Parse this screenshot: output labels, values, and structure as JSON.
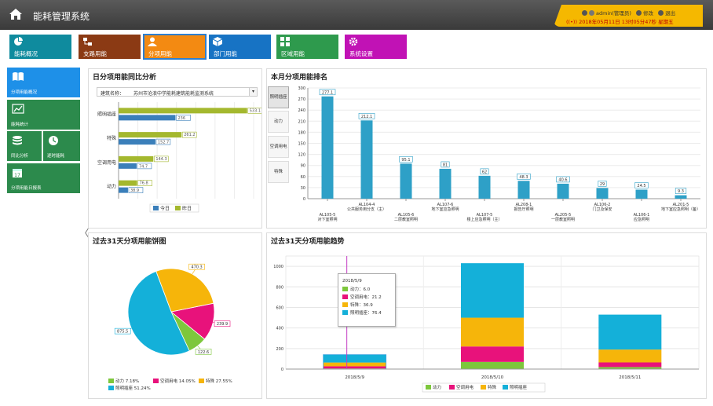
{
  "app": {
    "title": "能耗管理系统",
    "user_line": "admin(管理员)  修改  退出",
    "user_name": "admin(管理员)",
    "modify": "修改",
    "logout": "退出",
    "datetime": "2018年05月11日 13时05分47秒 星期五"
  },
  "modules": [
    {
      "label": "能耗概况",
      "color": "#0f8b9e",
      "icon": "pie-icon"
    },
    {
      "label": "支路用能",
      "color": "#8b3a14",
      "icon": "branch-icon"
    },
    {
      "label": "分项用能",
      "color": "#f38a12",
      "icon": "user-icon",
      "active": true
    },
    {
      "label": "部门用能",
      "color": "#1773c4",
      "icon": "cube-icon"
    },
    {
      "label": "区域用能",
      "color": "#2e9a4d",
      "icon": "grid-icon"
    },
    {
      "label": "系统设置",
      "color": "#c112b5",
      "icon": "gear-icon"
    }
  ],
  "leftnav": [
    {
      "label": "分项用能概况",
      "icon": "book-icon",
      "selected": true
    },
    {
      "label": "能耗统计",
      "icon": "trend-icon"
    },
    {
      "label": "同比分析",
      "icon": "db-icon"
    },
    {
      "label": "逐时能耗",
      "icon": "clock-icon"
    },
    {
      "label": "分项用能日报表",
      "icon": "calendar-icon"
    }
  ],
  "colors": {
    "accent": "#2d7fd0",
    "topbar": "#4a4a4a",
    "nav_green": "#2c8a4c",
    "nav_selected": "#1e90e8"
  },
  "panel1": {
    "title": "日分项用能同比分析",
    "building_label": "建筑名称：",
    "building_value": "苏州市沧浪中学能耗建筑能耗监测系统",
    "arrow": "▾"
  },
  "panel2": {
    "title": "本月分项用能排名",
    "tabs": [
      "照明插座",
      "动力",
      "空调用电",
      "特殊"
    ]
  },
  "panel3": {
    "title": "过去31天分项用能饼图"
  },
  "panel4": {
    "title": "过去31天分项用能趋势",
    "tooltip": {
      "date": "2018/5/9",
      "rows": [
        "动力：6.0",
        "空调用电：21.2",
        "特殊：36.9",
        "照明插座：76.4"
      ]
    }
  },
  "chart_data": [
    {
      "type": "bar",
      "orientation": "horizontal",
      "categories": [
        "照明插座",
        "特殊",
        "空调用电",
        "动力"
      ],
      "series": [
        {
          "name": "今日",
          "color": "#3b7fba",
          "values": [
            236,
            152.7,
            74.7,
            38.9
          ]
        },
        {
          "name": "昨日",
          "color": "#a4b82e",
          "values": [
            533.1,
            261.2,
            144.3,
            76.8
          ]
        }
      ],
      "xlim": [
        0,
        560
      ],
      "legend": "bottom"
    },
    {
      "type": "bar",
      "categories": [
        "AL105-5\n对下室照明",
        "AL104-4\n公共服务用分支（主）",
        "AL105-6\n二层教室照明",
        "AL107-6\n地下室应急照明",
        "AL107-5\n楼上应急照明（主）",
        "AL208-1\n报告厅照明",
        "AL205-5\n一层教室照明",
        "AL106-2\n门卫及保安",
        "AL106-1\n应急照明",
        "AL201-5\n地下室应急照明（备）"
      ],
      "tick_labels_top": [
        "",
        "AL104-4\n公共服务用分支（主）",
        "",
        "AL107-6\n地下室应急照明",
        "",
        "AL208-1\n报告厅照明",
        "",
        "AL106-2\n门卫及保安",
        "",
        "AL201-5\n地下室应急照明（备）"
      ],
      "tick_labels_bottom": [
        "AL105-5\n对下室照明",
        "",
        "AL105-6\n二层教室照明",
        "",
        "AL107-5\n楼上应急照明（主）",
        "",
        "AL205-5\n一层教室照明",
        "",
        "AL106-1\n应急照明",
        ""
      ],
      "values": [
        277.1,
        212.1,
        95.1,
        81,
        62,
        48.3,
        40.6,
        29,
        24.5,
        9.3
      ],
      "color": "#2ea0c7",
      "ylim": [
        0,
        300
      ],
      "yticks": [
        0,
        30,
        60,
        90,
        120,
        150,
        180,
        210,
        240,
        270,
        300
      ]
    },
    {
      "type": "pie",
      "slices": [
        {
          "name": "动力",
          "percent": 7.18,
          "value": 122.6,
          "color": "#7dc73c"
        },
        {
          "name": "空调用电",
          "percent": 14.05,
          "value": 239.9,
          "color": "#e8127b"
        },
        {
          "name": "特殊",
          "percent": 27.55,
          "value": 470.3,
          "color": "#f6b50a"
        },
        {
          "name": "照明插座",
          "percent": 51.24,
          "value": 875.5,
          "color": "#14b0d9"
        }
      ],
      "legend_labels": [
        "动力 7.18%",
        "空调用电 14.05%",
        "特殊 27.55%",
        "照明插座 51.24%"
      ],
      "legend": "bottom"
    },
    {
      "type": "bar",
      "stacked": true,
      "categories": [
        "2018/5/9",
        "2018/5/10",
        "2018/5/11"
      ],
      "series": [
        {
          "name": "动力",
          "color": "#7dc73c",
          "values": [
            6.0,
            70,
            20
          ]
        },
        {
          "name": "空调用电",
          "color": "#e8127b",
          "values": [
            21.2,
            150,
            45
          ]
        },
        {
          "name": "特殊",
          "color": "#f6b50a",
          "values": [
            36.9,
            280,
            125
          ]
        },
        {
          "name": "照明插座",
          "color": "#14b0d9",
          "values": [
            76.4,
            530,
            340
          ]
        }
      ],
      "ylim": [
        0,
        1100
      ],
      "yticks": [
        0,
        200,
        400,
        600,
        800,
        1000
      ],
      "legend": "bottom"
    }
  ]
}
